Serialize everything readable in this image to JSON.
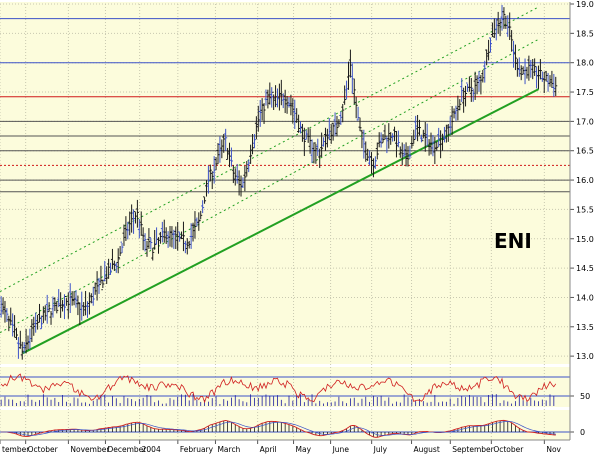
{
  "chart_data": {
    "type": "ohlc-bar",
    "title": "ENI",
    "ylim": [
      12.9,
      19.0
    ],
    "yticks": [
      13.0,
      13.5,
      14.0,
      14.5,
      15.0,
      15.5,
      16.0,
      16.5,
      17.0,
      17.5,
      18.0,
      18.5,
      19.0
    ],
    "ytick_labels": [
      "13.0",
      "13.5",
      "14.0",
      "14.5",
      "15.0",
      "15.5",
      "16.0",
      "16.5",
      "17.0",
      "17.5",
      "18.0",
      "18.5",
      "19.0"
    ],
    "months": [
      {
        "label": "tember",
        "pos": 0.0
      },
      {
        "label": "October",
        "pos": 0.045
      },
      {
        "label": "November",
        "pos": 0.12
      },
      {
        "label": "December",
        "pos": 0.185
      },
      {
        "label": "2004",
        "pos": 0.245
      },
      {
        "label": "February",
        "pos": 0.312
      },
      {
        "label": "March",
        "pos": 0.378
      },
      {
        "label": "April",
        "pos": 0.452
      },
      {
        "label": "May",
        "pos": 0.515
      },
      {
        "label": "June",
        "pos": 0.58
      },
      {
        "label": "July",
        "pos": 0.652
      },
      {
        "label": "August",
        "pos": 0.722
      },
      {
        "label": "September",
        "pos": 0.79
      },
      {
        "label": "October",
        "pos": 0.862
      },
      {
        "label": "Nov",
        "pos": 0.955
      }
    ],
    "price_path": [
      [
        0.0,
        13.9
      ],
      [
        0.02,
        13.5
      ],
      [
        0.04,
        13.05
      ],
      [
        0.06,
        13.5
      ],
      [
        0.09,
        13.8
      ],
      [
        0.12,
        13.95
      ],
      [
        0.15,
        13.8
      ],
      [
        0.18,
        14.3
      ],
      [
        0.205,
        14.6
      ],
      [
        0.225,
        15.2
      ],
      [
        0.24,
        15.45
      ],
      [
        0.255,
        14.9
      ],
      [
        0.27,
        14.85
      ],
      [
        0.29,
        15.1
      ],
      [
        0.31,
        15.0
      ],
      [
        0.33,
        14.95
      ],
      [
        0.35,
        15.3
      ],
      [
        0.365,
        16.0
      ],
      [
        0.38,
        16.3
      ],
      [
        0.395,
        16.7
      ],
      [
        0.41,
        16.1
      ],
      [
        0.425,
        15.9
      ],
      [
        0.44,
        16.5
      ],
      [
        0.455,
        17.1
      ],
      [
        0.47,
        17.4
      ],
      [
        0.485,
        17.35
      ],
      [
        0.5,
        17.45
      ],
      [
        0.515,
        17.2
      ],
      [
        0.53,
        16.8
      ],
      [
        0.545,
        16.6
      ],
      [
        0.56,
        16.45
      ],
      [
        0.575,
        16.8
      ],
      [
        0.59,
        16.9
      ],
      [
        0.605,
        17.35
      ],
      [
        0.615,
        18.0
      ],
      [
        0.63,
        16.9
      ],
      [
        0.64,
        16.55
      ],
      [
        0.655,
        16.3
      ],
      [
        0.67,
        16.7
      ],
      [
        0.69,
        16.8
      ],
      [
        0.705,
        16.4
      ],
      [
        0.715,
        16.35
      ],
      [
        0.73,
        16.9
      ],
      [
        0.745,
        16.7
      ],
      [
        0.76,
        16.6
      ],
      [
        0.78,
        16.75
      ],
      [
        0.795,
        17.05
      ],
      [
        0.81,
        17.45
      ],
      [
        0.83,
        17.55
      ],
      [
        0.845,
        17.7
      ],
      [
        0.86,
        18.4
      ],
      [
        0.875,
        18.7
      ],
      [
        0.885,
        18.8
      ],
      [
        0.895,
        18.5
      ],
      [
        0.905,
        18.0
      ],
      [
        0.92,
        17.85
      ],
      [
        0.93,
        17.9
      ],
      [
        0.945,
        17.8
      ],
      [
        0.96,
        17.7
      ],
      [
        0.975,
        17.6
      ]
    ],
    "horizontal_levels": [
      {
        "value": 18.75,
        "color": "#3c52c8"
      },
      {
        "value": 18.0,
        "color": "#3c52c8"
      },
      {
        "value": 17.42,
        "color": "#d01818"
      },
      {
        "value": 17.0,
        "color": "#555555"
      },
      {
        "value": 16.75,
        "color": "#555555"
      },
      {
        "value": 16.5,
        "color": "#555555"
      },
      {
        "value": 16.25,
        "color": "#d01818",
        "dashed": true
      },
      {
        "value": 16.0,
        "color": "#555555"
      },
      {
        "value": 15.8,
        "color": "#555555"
      }
    ],
    "trendlines": [
      {
        "from": [
          0.04,
          13.05
        ],
        "to": [
          0.945,
          17.55
        ],
        "color": "#22a022",
        "width": 2
      },
      {
        "from": [
          0.0,
          14.1
        ],
        "to": [
          0.945,
          18.95
        ],
        "color": "#22a022",
        "dashed": true
      },
      {
        "from": [
          0.0,
          13.4
        ],
        "to": [
          0.945,
          18.4
        ],
        "color": "#22a022",
        "dashed": true
      }
    ],
    "indicator1": {
      "type": "oscillator-with-volume",
      "ytick_labels": [
        "50"
      ],
      "line_color": "#d02020",
      "hist_color": "#1a1aa0"
    },
    "indicator2": {
      "type": "macd",
      "ytick_labels": [
        "0"
      ],
      "line_color": "#d02020",
      "hist_color": "#1a1a1a"
    },
    "colors": {
      "background": "#fcfcdc",
      "price_bars": "#1a1a1a",
      "price_bar_highlight": "#3c52c8",
      "grid": "#c8c8b0"
    }
  }
}
